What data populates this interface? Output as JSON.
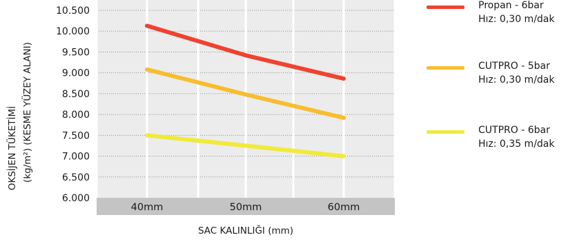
{
  "chart_data": {
    "type": "line",
    "categories": [
      "40mm",
      "50mm",
      "60mm"
    ],
    "xlabel": "SAC KALINLIĞI (mm)",
    "ylabel_line1": "OKSİJEN TÜKETİMİ",
    "ylabel_line2": "(kg/m²) (KESME YÜZEY ALANI)",
    "y_ticks": [
      "6.000",
      "6.500",
      "7.000",
      "7.500",
      "8.000",
      "8.500",
      "9.000",
      "9.500",
      "10.000",
      "10.500"
    ],
    "ylim": [
      6000,
      10500
    ],
    "grid": true,
    "legend_position": "right",
    "series": [
      {
        "label_line1": "Propan - 6bar",
        "label_line2": "Hız: 0,30 m/dak",
        "color": "#ef4330",
        "values": [
          10130,
          9420,
          8860
        ]
      },
      {
        "label_line1": "CUTPRO - 5bar",
        "label_line2": "Hız: 0,30 m/dak",
        "color": "#f8bd2e",
        "values": [
          9080,
          8480,
          7920
        ]
      },
      {
        "label_line1": "CUTPRO - 6bar",
        "label_line2": "Hız: 0,35 m/dak",
        "color": "#f1ea3a",
        "values": [
          7500,
          7250,
          7000
        ]
      }
    ]
  }
}
